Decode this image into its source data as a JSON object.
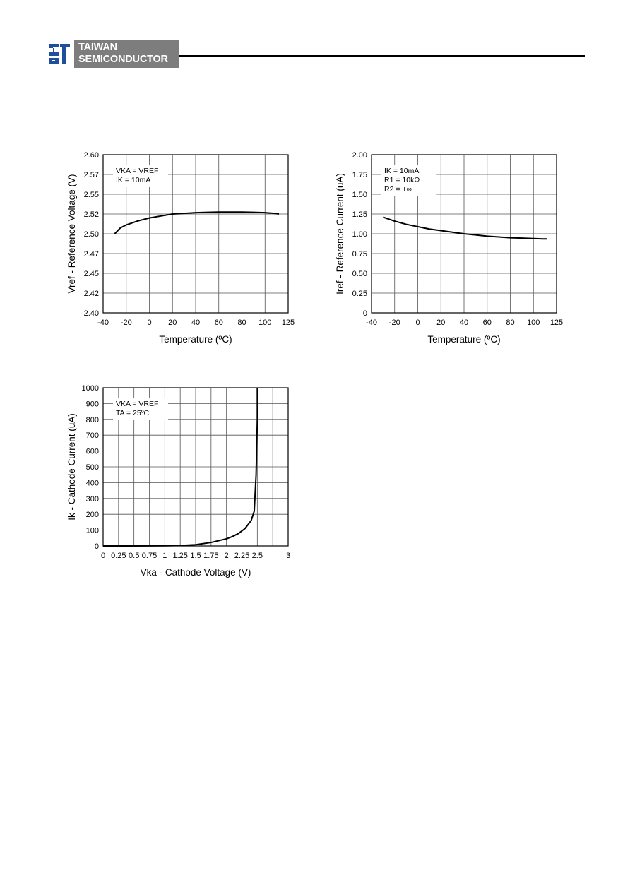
{
  "header": {
    "logo_line1": "TAIWAN",
    "logo_line2": "SEMICONDUCTOR",
    "logo_mark": "ts-logo-icon",
    "logo_box_color": "#7d7d7d",
    "logo_mark_color": "#1f4f9c"
  },
  "chart_data": [
    {
      "type": "line",
      "title": "",
      "xlabel": "Temperature (ºC)",
      "ylabel": "Vref - Reference Voltage (V)",
      "x_ticks": [
        "-40",
        "-20",
        "0",
        "20",
        "40",
        "60",
        "80",
        "100",
        "125"
      ],
      "y_ticks": [
        "2.40",
        "2.42",
        "2.45",
        "2.47",
        "2.50",
        "2.52",
        "2.55",
        "2.57",
        "2.60"
      ],
      "annotations": [
        "VKA = VREF",
        "IK = 10mA"
      ],
      "grid": true,
      "series": [
        {
          "x": [
            -30,
            -25,
            -20,
            -10,
            0,
            10,
            20,
            30,
            40,
            50,
            60,
            70,
            80,
            90,
            100,
            110,
            115
          ],
          "y": [
            2.5,
            2.506,
            2.509,
            2.513,
            2.516,
            2.518,
            2.52,
            2.521,
            2.522,
            2.5225,
            2.523,
            2.523,
            2.523,
            2.5225,
            2.522,
            2.521,
            2.52
          ]
        }
      ]
    },
    {
      "type": "line",
      "title": "",
      "xlabel": "Temperature (ºC)",
      "ylabel": "Iref - Reference Current (uA)",
      "x_ticks": [
        "-40",
        "-20",
        "0",
        "20",
        "40",
        "60",
        "80",
        "100",
        "125"
      ],
      "y_ticks": [
        "0",
        "0.25",
        "0.50",
        "0.75",
        "1.00",
        "1.25",
        "1.50",
        "1.75",
        "2.00"
      ],
      "annotations": [
        "IK = 10mA",
        "R1 = 10kΩ",
        "R2 = +∞"
      ],
      "grid": true,
      "series": [
        {
          "x": [
            -30,
            -20,
            -10,
            0,
            10,
            20,
            30,
            40,
            50,
            60,
            70,
            80,
            90,
            100,
            110,
            115
          ],
          "y": [
            1.21,
            1.16,
            1.12,
            1.09,
            1.06,
            1.04,
            1.02,
            1.0,
            0.985,
            0.97,
            0.96,
            0.95,
            0.945,
            0.94,
            0.935,
            0.935
          ]
        }
      ]
    },
    {
      "type": "line",
      "title": "",
      "xlabel": "Vka - Cathode Voltage (V)",
      "ylabel": "Ik - Cathode Current (uA)",
      "x_ticks": [
        "0",
        "0.25",
        "0.5",
        "0.75",
        "1",
        "1.25",
        "1.5",
        "1.75",
        "2",
        "2.25",
        "2.5",
        "3"
      ],
      "y_ticks": [
        "0",
        "100",
        "200",
        "300",
        "400",
        "500",
        "600",
        "700",
        "800",
        "900",
        "1000"
      ],
      "annotations": [
        "VKA = VREF",
        "TA = 25ºC"
      ],
      "grid": true,
      "series": [
        {
          "x": [
            0,
            0.5,
            1.0,
            1.25,
            1.5,
            1.75,
            2.0,
            2.1,
            2.2,
            2.3,
            2.4,
            2.45,
            2.48,
            2.5,
            2.5
          ],
          "y": [
            0,
            0,
            1,
            3,
            8,
            22,
            45,
            60,
            80,
            110,
            160,
            220,
            450,
            800,
            1000
          ]
        }
      ]
    }
  ]
}
